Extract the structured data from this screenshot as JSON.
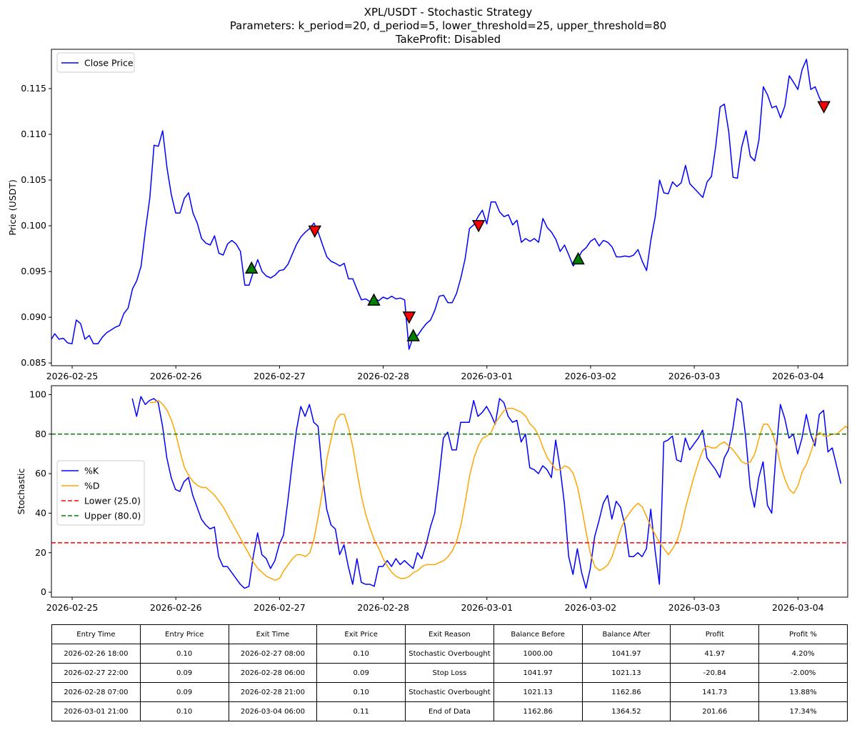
{
  "title": {
    "line1": "XPL/USDT - Stochastic Strategy",
    "line2": "Parameters: k_period=20, d_period=5, lower_threshold=25, upper_threshold=80",
    "line3": "TakeProfit: Disabled"
  },
  "chart_data": [
    {
      "type": "line",
      "ylabel": "Price (USDT)",
      "xlim": [
        -0.2,
        7.48
      ],
      "ylim": [
        0.0847,
        0.1193
      ],
      "yticks": [
        0.085,
        0.09,
        0.095,
        0.1,
        0.105,
        0.11,
        0.115
      ],
      "ytick_labels": [
        "0.085",
        "0.090",
        "0.095",
        "0.100",
        "0.105",
        "0.110",
        "0.115"
      ],
      "xticks": [
        0,
        1,
        2,
        3,
        4,
        5,
        6,
        7
      ],
      "xtick_labels": [
        "2026-02-25",
        "2026-02-26",
        "2026-02-27",
        "2026-02-28",
        "2026-03-01",
        "2026-03-02",
        "2026-03-03",
        "2026-03-04"
      ],
      "legend": {
        "location": "upper left",
        "entries": [
          "Close Price"
        ]
      },
      "series": [
        {
          "name": "Close Price",
          "color": "#0000ff",
          "x_start": -0.21,
          "x_step": 0.04167,
          "values": [
            0.0874,
            0.0882,
            0.0876,
            0.0877,
            0.0872,
            0.0871,
            0.0897,
            0.0893,
            0.0876,
            0.088,
            0.0871,
            0.0871,
            0.0878,
            0.0883,
            0.0886,
            0.0889,
            0.0891,
            0.0904,
            0.091,
            0.0931,
            0.094,
            0.0956,
            0.0995,
            0.103,
            0.1088,
            0.1087,
            0.1104,
            0.1063,
            0.1034,
            0.1014,
            0.1014,
            0.103,
            0.1036,
            0.1014,
            0.1003,
            0.0986,
            0.0981,
            0.0979,
            0.0989,
            0.097,
            0.0968,
            0.098,
            0.0984,
            0.098,
            0.0972,
            0.0935,
            0.0935,
            0.095,
            0.0963,
            0.095,
            0.0945,
            0.0943,
            0.0946,
            0.0951,
            0.0952,
            0.0958,
            0.0969,
            0.098,
            0.0988,
            0.0993,
            0.0997,
            0.1003,
            0.0993,
            0.0979,
            0.0966,
            0.0961,
            0.0959,
            0.0956,
            0.0959,
            0.0942,
            0.0942,
            0.093,
            0.0919,
            0.092,
            0.0917,
            0.0921,
            0.0918,
            0.0922,
            0.092,
            0.0923,
            0.092,
            0.0921,
            0.0919,
            0.0865,
            0.0879,
            0.088,
            0.0887,
            0.0893,
            0.0897,
            0.0908,
            0.0923,
            0.0924,
            0.0916,
            0.0916,
            0.0926,
            0.0943,
            0.0964,
            0.0997,
            0.1001,
            0.101,
            0.1017,
            0.1002,
            0.1026,
            0.1026,
            0.1015,
            0.101,
            0.1012,
            0.1001,
            0.1006,
            0.0982,
            0.0986,
            0.0983,
            0.0986,
            0.0982,
            0.1008,
            0.0998,
            0.0993,
            0.0985,
            0.0972,
            0.0979,
            0.0968,
            0.0956,
            0.0963,
            0.0972,
            0.0976,
            0.0983,
            0.0986,
            0.0978,
            0.0984,
            0.0982,
            0.0977,
            0.0966,
            0.0966,
            0.0967,
            0.0966,
            0.0968,
            0.0974,
            0.0961,
            0.0951,
            0.0985,
            0.101,
            0.105,
            0.1036,
            0.1035,
            0.1048,
            0.1043,
            0.1047,
            0.1066,
            0.1046,
            0.1041,
            0.1036,
            0.1031,
            0.1048,
            0.1054,
            0.1087,
            0.113,
            0.1133,
            0.1103,
            0.1053,
            0.1052,
            0.1086,
            0.1104,
            0.1076,
            0.1071,
            0.1094,
            0.1152,
            0.1143,
            0.1129,
            0.1131,
            0.1118,
            0.1131,
            0.1164,
            0.1157,
            0.1149,
            0.1171,
            0.1182,
            0.1149,
            0.1152,
            0.114,
            0.1131
          ]
        }
      ],
      "buy_markers": [
        [
          1.73,
          0.0953
        ],
        [
          2.91,
          0.0918
        ],
        [
          3.29,
          0.0879
        ],
        [
          4.88,
          0.0963
        ]
      ],
      "sell_markers": [
        [
          2.34,
          0.0995
        ],
        [
          3.25,
          0.0901
        ],
        [
          3.92,
          0.1001
        ],
        [
          7.25,
          0.1131
        ]
      ],
      "colors": {
        "price": "#0000ff",
        "buy": "#008000",
        "sell": "#ff0000"
      }
    },
    {
      "type": "line",
      "ylabel": "Stochastic",
      "xlim": [
        -0.2,
        7.48
      ],
      "ylim": [
        -2.5,
        104.5
      ],
      "yticks": [
        0,
        20,
        40,
        60,
        80,
        100
      ],
      "ytick_labels": [
        "0",
        "20",
        "40",
        "60",
        "80",
        "100"
      ],
      "xticks": [
        0,
        1,
        2,
        3,
        4,
        5,
        6,
        7
      ],
      "xtick_labels": [
        "2026-02-25",
        "2026-02-26",
        "2026-02-27",
        "2026-02-28",
        "2026-03-01",
        "2026-03-02",
        "2026-03-03",
        "2026-03-04"
      ],
      "legend": {
        "location": "center left",
        "entries": [
          "%K",
          "%D",
          "Lower (25.0)",
          "Upper (80.0)"
        ]
      },
      "series": [
        {
          "name": "%K",
          "color": "#0000ff",
          "x_start": 0.58,
          "x_step": 0.04167,
          "values": [
            98,
            89,
            99,
            95,
            97,
            98,
            96,
            84,
            68,
            58,
            52,
            51,
            56,
            58,
            49,
            43,
            37,
            34,
            32,
            33,
            18,
            13,
            13,
            10,
            7,
            4,
            2,
            3,
            18,
            30,
            19,
            17,
            12,
            16,
            24,
            29,
            46,
            65,
            82,
            94,
            89,
            95,
            86,
            84,
            60,
            42,
            34,
            32,
            19,
            24,
            13,
            4,
            17,
            5,
            4,
            4,
            3,
            13,
            13,
            16,
            13,
            17,
            14,
            16,
            14,
            12,
            20,
            17,
            24,
            33,
            40,
            58,
            78,
            81,
            72,
            72,
            86,
            86,
            86,
            97,
            89,
            91,
            94,
            90,
            85,
            98,
            96,
            89,
            86,
            87,
            76,
            80,
            63,
            62,
            60,
            64,
            62,
            58,
            77,
            63,
            45,
            18,
            9,
            22,
            10,
            2,
            12,
            28,
            36,
            45,
            49,
            37,
            46,
            43,
            34,
            18,
            18,
            20,
            18,
            22,
            42,
            21,
            4,
            76,
            77,
            79,
            67,
            66,
            78,
            72,
            75,
            78,
            82,
            68,
            65,
            62,
            58,
            68,
            72,
            83,
            98,
            96,
            78,
            53,
            43,
            58,
            66,
            44,
            40,
            71,
            95,
            88,
            78,
            80,
            70,
            78,
            90,
            80,
            74,
            90,
            92,
            71,
            73,
            64,
            55
          ]
        },
        {
          "name": "%D",
          "color": "#ffa500",
          "x_start": 0.75,
          "x_step": 0.04167,
          "values": [
            96,
            96,
            97,
            95,
            92,
            87,
            80,
            71,
            63,
            59,
            56,
            54,
            53,
            53,
            51,
            49,
            46,
            43,
            39,
            35,
            31,
            27,
            23,
            19,
            15,
            12,
            10,
            8,
            7,
            6,
            7,
            11,
            14,
            17,
            19,
            19,
            18,
            20,
            27,
            39,
            52,
            68,
            78,
            87,
            90,
            90,
            83,
            73,
            60,
            48,
            39,
            32,
            26,
            22,
            17,
            13,
            10,
            8,
            7,
            7,
            8,
            10,
            11,
            13,
            14,
            14,
            14,
            15,
            16,
            18,
            21,
            26,
            34,
            46,
            59,
            68,
            74,
            78,
            79,
            81,
            86,
            89,
            92,
            93,
            93,
            92,
            91,
            89,
            85,
            83,
            79,
            73,
            68,
            65,
            62,
            62,
            64,
            63,
            60,
            53,
            42,
            30,
            19,
            13,
            11,
            12,
            14,
            18,
            25,
            32,
            37,
            40,
            43,
            45,
            43,
            38,
            33,
            29,
            25,
            22,
            19,
            22,
            26,
            33,
            43,
            51,
            59,
            66,
            72,
            74,
            73,
            73,
            75,
            76,
            74,
            72,
            69,
            66,
            65,
            66,
            70,
            78,
            85,
            85,
            81,
            74,
            64,
            57,
            52,
            50,
            54,
            61,
            65,
            71,
            78,
            81,
            79,
            79,
            80,
            80,
            82,
            84,
            82,
            79,
            77,
            71
          ]
        },
        {
          "name": "Lower (25.0)",
          "color": "#ff0000",
          "constant": 25
        },
        {
          "name": "Upper (80.0)",
          "color": "#008000",
          "constant": 80
        }
      ]
    }
  ],
  "table": {
    "headers": [
      "Entry Time",
      "Entry Price",
      "Exit Time",
      "Exit Price",
      "Exit Reason",
      "Balance Before",
      "Balance After",
      "Profit",
      "Profit %"
    ],
    "rows": [
      [
        "2026-02-26 18:00",
        "0.10",
        "2026-02-27 08:00",
        "0.10",
        "Stochastic Overbought",
        "1000.00",
        "1041.97",
        "41.97",
        "4.20%"
      ],
      [
        "2026-02-27 22:00",
        "0.09",
        "2026-02-28 06:00",
        "0.09",
        "Stop Loss",
        "1041.97",
        "1021.13",
        "-20.84",
        "-2.00%"
      ],
      [
        "2026-02-28 07:00",
        "0.09",
        "2026-02-28 21:00",
        "0.10",
        "Stochastic Overbought",
        "1021.13",
        "1162.86",
        "141.73",
        "13.88%"
      ],
      [
        "2026-03-01 21:00",
        "0.10",
        "2026-03-04 06:00",
        "0.11",
        "End of Data",
        "1162.86",
        "1364.52",
        "201.66",
        "17.34%"
      ]
    ]
  }
}
